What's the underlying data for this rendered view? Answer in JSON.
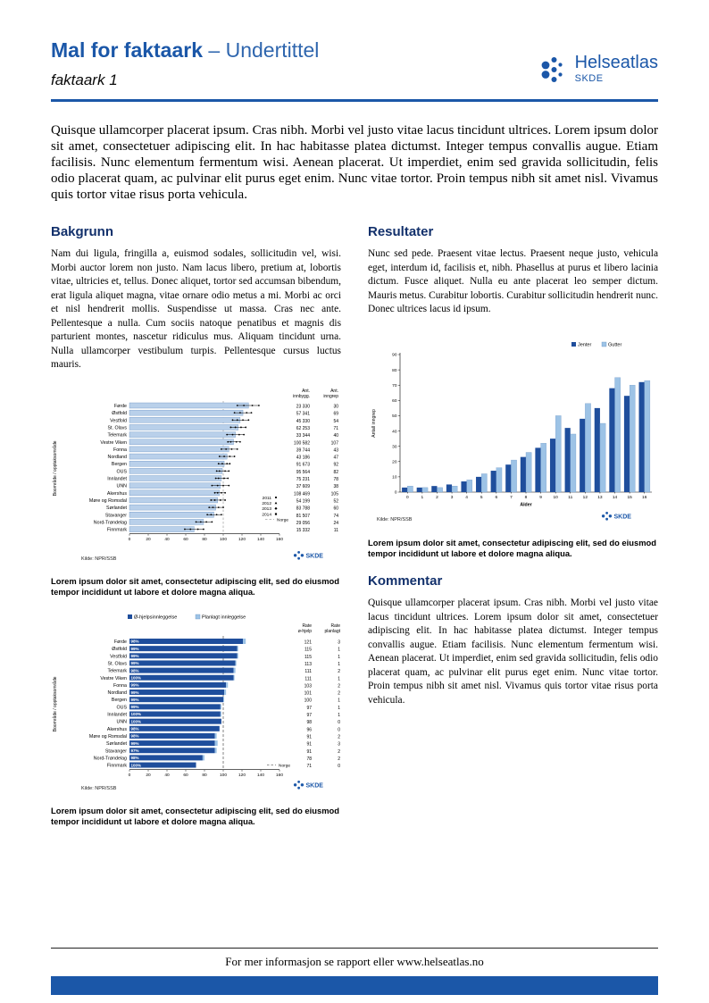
{
  "header": {
    "title_main": "Mal for faktaark",
    "title_suffix": " – Undertittel",
    "subtitle": "faktaark 1",
    "logo_text": "Helseatlas",
    "logo_subtext": "SKDE"
  },
  "branding": {
    "skde_mark": "SKDE",
    "brand_blue": "#1b57a8"
  },
  "colors": {
    "dark_series": "#1f4e9c",
    "light_series": "#9dc3e6",
    "bar_fill": "#b9d0ea",
    "bar_stroke": "#6d94c4"
  },
  "intro": "Quisque ullamcorper placerat ipsum. Cras nibh. Morbi vel justo vitae lacus tincidunt ultrices. Lorem ipsum dolor sit amet, consectetuer adipiscing elit. In hac habitasse platea dictumst. Integer tempus convallis augue. Etiam facilisis. Nunc elementum fermentum wisi. Aenean placerat. Ut imperdiet, enim sed gravida sollicitudin, felis odio placerat quam, ac pulvinar elit purus eget enim. Nunc vitae tortor. Proin tempus nibh sit amet nisl. Vivamus quis tortor vitae risus porta vehicula.",
  "sections": {
    "bakgrunn": {
      "heading": "Bakgrunn",
      "body": "Nam dui ligula, fringilla a, euismod sodales, sollicitudin vel, wisi. Morbi auctor lorem non justo. Nam lacus libero, pretium at, lobortis vitae, ultricies et, tellus. Donec aliquet, tortor sed accumsan bibendum, erat ligula aliquet magna, vitae ornare odio metus a mi. Morbi ac orci et nisl hendrerit mollis. Suspendisse ut massa. Cras nec ante. Pellentesque a nulla. Cum sociis natoque penatibus et magnis dis parturient montes, nascetur ridiculus mus. Aliquam tincidunt urna. Nulla ullamcorper vestibulum turpis. Pellentesque cursus luctus mauris."
    },
    "resultater": {
      "heading": "Resultater",
      "body": "Nunc sed pede. Praesent vitae lectus. Praesent neque justo, vehicula eget, interdum id, facilisis et, nibh. Phasellus at purus et libero lacinia dictum. Fusce aliquet. Nulla eu ante placerat leo semper dictum. Mauris metus. Curabitur lobortis. Curabitur sollicitudin hendrerit nunc. Donec ultrices lacus id ipsum."
    },
    "kommentar": {
      "heading": "Kommentar",
      "body": "Quisque ullamcorper placerat ipsum. Cras nibh. Morbi vel justo vitae lacus tincidunt ultrices. Lorem ipsum dolor sit amet, consectetuer adipiscing elit. In hac habitasse platea dictumst. Integer tempus convallis augue. Etiam facilisis. Nunc elementum fermentum wisi. Aenean placerat. Ut imperdiet, enim sed gravida sollicitudin, felis odio placerat quam, ac pulvinar elit purus eget enim. Nunc vitae tortor. Proin tempus nibh sit amet nisl. Vivamus quis tortor vitae risus porta vehicula."
    }
  },
  "captions": {
    "chart1": "Lorem ipsum dolor sit amet, consectetur adipiscing elit, sed do eiusmod tempor incididunt ut labore et dolore magna aliqua.",
    "chart2": "Lorem ipsum dolor sit amet, consectetur adipiscing elit, sed do eiusmod tempor incididunt ut labore et dolore magna aliqua.",
    "chart3": "Lorem ipsum dolor sit amet, consectetur adipiscing elit, sed do eiusmod tempor incididunt ut labore et dolore magna aliqua."
  },
  "footer": {
    "text": "For mer informasjon se rapport eller www.helseatlas.no"
  },
  "chart_data": [
    {
      "id": "rates-by-area",
      "type": "bar",
      "orientation": "horizontal",
      "ylabel": "Boområde / opptaksområde",
      "xlim": [
        0,
        160
      ],
      "xticks": [
        0,
        20,
        40,
        60,
        80,
        100,
        120,
        140,
        160
      ],
      "reference_line": 100,
      "norge_label": "Norge",
      "legend": [
        "2011",
        "2012",
        "2013",
        "2014"
      ],
      "col_headers": [
        [
          "Ant.",
          "innbygg."
        ],
        [
          "Ant.",
          "inngrep"
        ]
      ],
      "source": "Kilde: NPR/SSB",
      "rows": [
        {
          "name": "Førde",
          "innbygg": "23 330",
          "inngrep": 30,
          "rate": 127,
          "points": [
            115,
            122,
            131,
            138
          ]
        },
        {
          "name": "Østfold",
          "innbygg": "57 341",
          "inngrep": 69,
          "rate": 121,
          "points": [
            112,
            118,
            125,
            130
          ]
        },
        {
          "name": "Vestfold",
          "innbygg": "45 330",
          "inngrep": 54,
          "rate": 118,
          "points": [
            110,
            115,
            121,
            127
          ]
        },
        {
          "name": "St. Olavs",
          "innbygg": "62 253",
          "inngrep": 71,
          "rate": 116,
          "points": [
            108,
            113,
            119,
            124
          ]
        },
        {
          "name": "Telemark",
          "innbygg": "33 344",
          "inngrep": 40,
          "rate": 113,
          "points": [
            104,
            110,
            117,
            122
          ]
        },
        {
          "name": "Vestre Viken",
          "innbygg": "100 582",
          "inngrep": 107,
          "rate": 111,
          "points": [
            105,
            108,
            114,
            118
          ]
        },
        {
          "name": "Fonna",
          "innbygg": "39 744",
          "inngrep": 43,
          "rate": 106,
          "points": [
            98,
            103,
            109,
            115
          ]
        },
        {
          "name": "Nordland",
          "innbygg": "43 186",
          "inngrep": 47,
          "rate": 104,
          "points": [
            96,
            101,
            107,
            112
          ]
        },
        {
          "name": "Bergen",
          "innbygg": "91 673",
          "inngrep": 92,
          "rate": 101,
          "points": [
            95,
            99,
            104,
            107
          ]
        },
        {
          "name": "OUS",
          "innbygg": "95 564",
          "inngrep": 82,
          "rate": 99,
          "points": [
            93,
            96,
            102,
            106
          ]
        },
        {
          "name": "Innlandet",
          "innbygg": "75 231",
          "inngrep": 78,
          "rate": 98,
          "points": [
            92,
            95,
            101,
            105
          ]
        },
        {
          "name": "UNN",
          "innbygg": "37 609",
          "inngrep": 38,
          "rate": 97,
          "points": [
            88,
            94,
            100,
            106
          ]
        },
        {
          "name": "Akershus",
          "innbygg": "108 469",
          "inngrep": 105,
          "rate": 96,
          "points": [
            91,
            94,
            98,
            102
          ]
        },
        {
          "name": "Møre og Romsdal",
          "innbygg": "54 199",
          "inngrep": 52,
          "rate": 94,
          "points": [
            87,
            91,
            97,
            102
          ]
        },
        {
          "name": "Sørlandet",
          "innbygg": "83 788",
          "inngrep": 60,
          "rate": 92,
          "points": [
            85,
            89,
            95,
            100
          ]
        },
        {
          "name": "Stavanger",
          "innbygg": "81 507",
          "inngrep": 74,
          "rate": 90,
          "points": [
            83,
            87,
            93,
            98
          ]
        },
        {
          "name": "Nord-Trøndelag",
          "innbygg": "29 056",
          "inngrep": 24,
          "rate": 79,
          "points": [
            71,
            76,
            82,
            88
          ]
        },
        {
          "name": "Finnmark",
          "innbygg": "15 332",
          "inngrep": 11,
          "rate": 69,
          "points": [
            59,
            65,
            73,
            79
          ]
        }
      ]
    },
    {
      "id": "admission-type",
      "type": "bar",
      "orientation": "horizontal",
      "stacked": true,
      "legend": [
        "Ø-hjelpsinnleggelse",
        "Planlagt innleggelse"
      ],
      "ylabel": "Boområde / opptaksområde",
      "xlim": [
        0,
        160
      ],
      "xticks": [
        0,
        20,
        40,
        60,
        80,
        100,
        120,
        140,
        160
      ],
      "reference_line": 100,
      "norge_label": "Norge",
      "col_headers": [
        [
          "Rate",
          "ø-hjelp"
        ],
        [
          "Rate",
          "planlagt"
        ]
      ],
      "source": "Kilde: NPR/SSB",
      "rows": [
        {
          "name": "Førde",
          "pct": "98%",
          "rate_ohjelp": 121,
          "rate_planlagt": 3
        },
        {
          "name": "Østfold",
          "pct": "99%",
          "rate_ohjelp": 115,
          "rate_planlagt": 1
        },
        {
          "name": "Vestfold",
          "pct": "99%",
          "rate_ohjelp": 115,
          "rate_planlagt": 1
        },
        {
          "name": "St. Olavs",
          "pct": "99%",
          "rate_ohjelp": 113,
          "rate_planlagt": 1
        },
        {
          "name": "Telemark",
          "pct": "98%",
          "rate_ohjelp": 111,
          "rate_planlagt": 2
        },
        {
          "name": "Vestre Viken",
          "pct": "100%",
          "rate_ohjelp": 111,
          "rate_planlagt": 1
        },
        {
          "name": "Fonna",
          "pct": "99%",
          "rate_ohjelp": 103,
          "rate_planlagt": 2
        },
        {
          "name": "Nordland",
          "pct": "99%",
          "rate_ohjelp": 101,
          "rate_planlagt": 2
        },
        {
          "name": "Bergen",
          "pct": "99%",
          "rate_ohjelp": 100,
          "rate_planlagt": 1
        },
        {
          "name": "OUS",
          "pct": "99%",
          "rate_ohjelp": 97,
          "rate_planlagt": 1
        },
        {
          "name": "Innlandet",
          "pct": "100%",
          "rate_ohjelp": 97,
          "rate_planlagt": 1
        },
        {
          "name": "UNN",
          "pct": "100%",
          "rate_ohjelp": 98,
          "rate_planlagt": 0
        },
        {
          "name": "Akershus",
          "pct": "98%",
          "rate_ohjelp": 96,
          "rate_planlagt": 0
        },
        {
          "name": "Møre og Romsdal",
          "pct": "98%",
          "rate_ohjelp": 91,
          "rate_planlagt": 2
        },
        {
          "name": "Sørlandet",
          "pct": "99%",
          "rate_ohjelp": 91,
          "rate_planlagt": 3
        },
        {
          "name": "Stavanger",
          "pct": "97%",
          "rate_ohjelp": 91,
          "rate_planlagt": 2
        },
        {
          "name": "Nord-Trøndelag",
          "pct": "98%",
          "rate_ohjelp": 78,
          "rate_planlagt": 2
        },
        {
          "name": "Finnmark",
          "pct": "100%",
          "rate_ohjelp": 71,
          "rate_planlagt": 0
        }
      ]
    },
    {
      "id": "age-distribution",
      "type": "bar",
      "orientation": "vertical",
      "categories": [
        "0",
        "1",
        "2",
        "3",
        "4",
        "5",
        "6",
        "7",
        "8",
        "9",
        "10",
        "11",
        "12",
        "13",
        "14",
        "15",
        "16"
      ],
      "series": [
        {
          "name": "Jenter",
          "values": [
            3,
            3,
            4,
            5,
            7,
            10,
            14,
            18,
            23,
            29,
            35,
            42,
            48,
            55,
            68,
            63,
            72
          ]
        },
        {
          "name": "Gutter",
          "values": [
            4,
            3,
            3,
            4,
            8,
            12,
            16,
            21,
            26,
            32,
            50,
            38,
            58,
            45,
            75,
            70,
            73
          ]
        }
      ],
      "xlabel": "Alder",
      "ylabel": "Antall inngrep",
      "ylim": [
        0,
        90
      ],
      "yticks": [
        0,
        10,
        20,
        30,
        40,
        50,
        60,
        70,
        80,
        90
      ],
      "legend_position": "top-right",
      "source": "Kilde: NPR/SSB"
    }
  ]
}
